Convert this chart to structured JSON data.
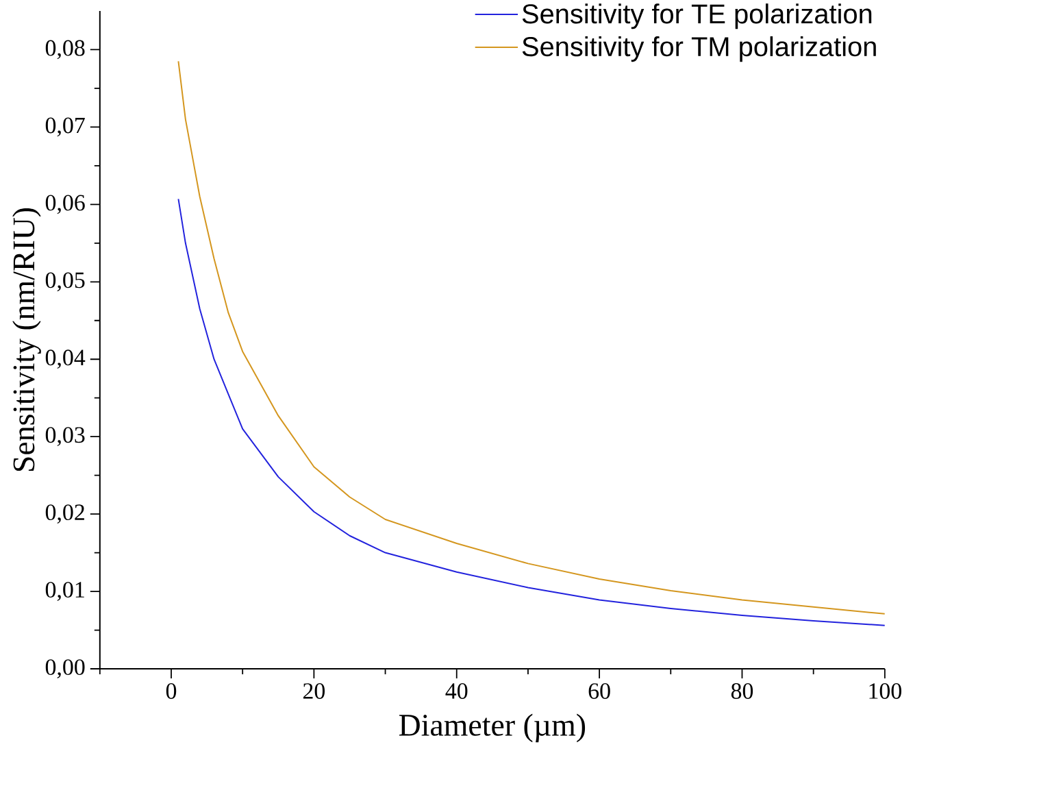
{
  "chart_data": {
    "type": "line",
    "xlabel": "Diameter (µm)",
    "ylabel": "Sensitivity (nm/RIU)",
    "xlim": [
      -10,
      100
    ],
    "ylim": [
      0,
      0.085
    ],
    "xticks": [
      {
        "value": -10,
        "label": null
      },
      0,
      {
        "value": 10,
        "label": null
      },
      20,
      {
        "value": 30,
        "label": null
      },
      40,
      {
        "value": 50,
        "label": null
      },
      60,
      {
        "value": 70,
        "label": null
      },
      80,
      {
        "value": 90,
        "label": null
      },
      100
    ],
    "yticks": [
      {
        "value": 0,
        "label": "0,00"
      },
      {
        "value": 0.005,
        "label": null
      },
      {
        "value": 0.01,
        "label": "0,01"
      },
      {
        "value": 0.015,
        "label": null
      },
      {
        "value": 0.02,
        "label": "0,02"
      },
      {
        "value": 0.025,
        "label": null
      },
      {
        "value": 0.03,
        "label": "0,03"
      },
      {
        "value": 0.035,
        "label": null
      },
      {
        "value": 0.04,
        "label": "0,04"
      },
      {
        "value": 0.045,
        "label": null
      },
      {
        "value": 0.05,
        "label": "0,05"
      },
      {
        "value": 0.055,
        "label": null
      },
      {
        "value": 0.06,
        "label": "0,06"
      },
      {
        "value": 0.065,
        "label": null
      },
      {
        "value": 0.07,
        "label": "0,07"
      },
      {
        "value": 0.075,
        "label": null
      },
      {
        "value": 0.08,
        "label": "0,08"
      }
    ],
    "legend": "top right",
    "marker": "none",
    "line_style": "solid",
    "x": [
      1,
      2,
      4,
      6,
      8,
      10,
      15,
      20,
      25,
      30,
      40,
      50,
      60,
      70,
      80,
      90,
      100
    ],
    "series": [
      {
        "name": "Sensitivity for TE polarization",
        "color": "#2222dd",
        "values": [
          0.0607,
          0.055,
          0.0465,
          0.04,
          0.0355,
          0.031,
          0.0248,
          0.0203,
          0.0172,
          0.015,
          0.0125,
          0.0105,
          0.0089,
          0.0078,
          0.0069,
          0.0062,
          0.0056
        ]
      },
      {
        "name": "Sensitivity for TM polarization",
        "color": "#d4961e",
        "values": [
          0.0785,
          0.071,
          0.061,
          0.053,
          0.046,
          0.041,
          0.0327,
          0.0261,
          0.0222,
          0.0193,
          0.0162,
          0.0136,
          0.0116,
          0.0101,
          0.0089,
          0.008,
          0.0071
        ]
      }
    ]
  }
}
